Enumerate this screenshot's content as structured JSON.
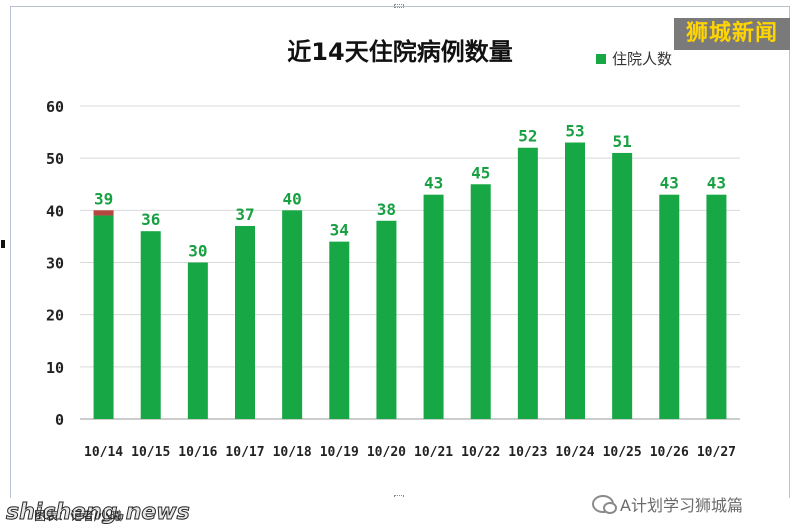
{
  "brand": {
    "label": "狮城新闻"
  },
  "footer": {
    "left_watermark": "shicheng.news",
    "left_note": "图表：记者/小曦",
    "right_text": "A计划学习狮城篇"
  },
  "colors": {
    "bar": "#17a845",
    "highlight": "#b4473f",
    "axis_text": "#222222",
    "label_text": "#18a043",
    "grid": "#d9d9d9"
  },
  "chart_data": {
    "type": "bar",
    "title": "近14天住院病例数量",
    "legend": {
      "label": "住院人数",
      "position": "top-right"
    },
    "categories": [
      "10/14",
      "10/15",
      "10/16",
      "10/17",
      "10/18",
      "10/19",
      "10/20",
      "10/21",
      "10/22",
      "10/23",
      "10/24",
      "10/25",
      "10/26",
      "10/27"
    ],
    "series": [
      {
        "name": "住院人数",
        "values": [
          39,
          36,
          30,
          37,
          40,
          34,
          38,
          43,
          45,
          52,
          53,
          51,
          43,
          43
        ]
      }
    ],
    "highlight_extra": [
      1,
      0,
      0,
      0,
      0,
      0,
      0,
      0,
      0,
      0,
      0,
      0,
      0,
      0
    ],
    "ylim": [
      0,
      60
    ],
    "yticks": [
      0,
      10,
      20,
      30,
      40,
      50,
      60
    ],
    "grid": true
  }
}
